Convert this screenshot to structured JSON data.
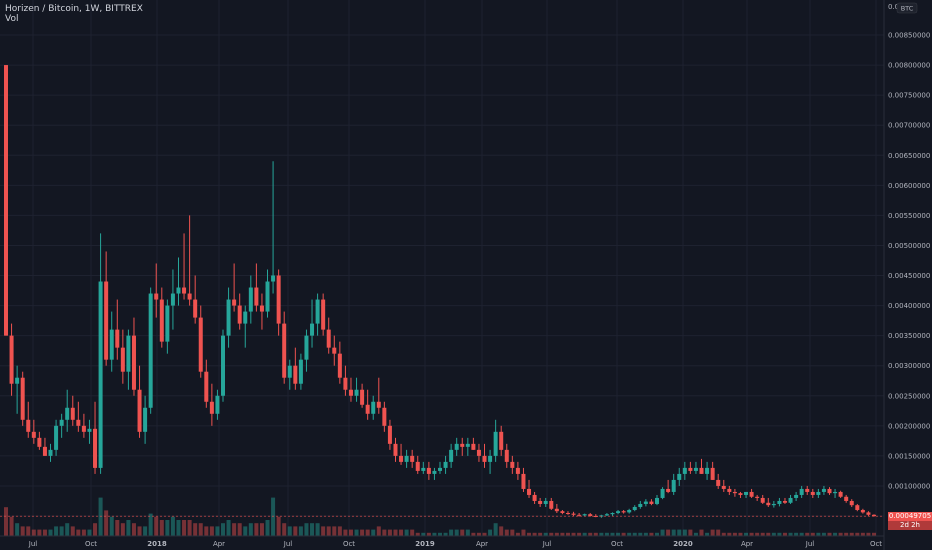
{
  "header": {
    "symbol_line": "Horizen / Bitcoin, 1W, BITTREX",
    "volume_label": "Vol"
  },
  "price_axis": {
    "currency": "BTC",
    "last_price": "0.00049705",
    "countdown": "2d 2h"
  },
  "colors": {
    "background": "#131722",
    "grid": "#1e2230",
    "up": "#26a69a",
    "down": "#ef5350",
    "axis_text": "#b2b5be"
  },
  "chart_data": {
    "type": "candlestick",
    "yaxis": {
      "min": 0.0005,
      "max": 0.0085,
      "step": 0.0005,
      "tick_labels": [
        "0.00050000",
        "0.00100000",
        "0.00150000",
        "0.00200000",
        "0.00250000",
        "0.00300000",
        "0.00350000",
        "0.00400000",
        "0.00450000",
        "0.00500000",
        "0.00550000",
        "0.00600000",
        "0.00650000",
        "0.00700000",
        "0.00750000",
        "0.00800000",
        "0.00850000"
      ],
      "top_label": "0.0"
    },
    "xaxis": {
      "tick_labels": [
        "Jul",
        "Oct",
        "2018",
        "Apr",
        "Jul",
        "Oct",
        "2019",
        "Apr",
        "Jul",
        "Oct",
        "2020",
        "Apr",
        "Jul",
        "Oct"
      ]
    },
    "grid": true,
    "candles": [
      [
        0.008,
        0.008,
        0.0035,
        0.0035,
        9
      ],
      [
        0.0035,
        0.0037,
        0.0025,
        0.0027,
        6
      ],
      [
        0.0027,
        0.003,
        0.0022,
        0.0028,
        4
      ],
      [
        0.0028,
        0.0029,
        0.002,
        0.0021,
        3
      ],
      [
        0.0021,
        0.0024,
        0.0018,
        0.0019,
        3
      ],
      [
        0.0019,
        0.0021,
        0.0017,
        0.0018,
        2
      ],
      [
        0.0018,
        0.0019,
        0.0016,
        0.00165,
        2
      ],
      [
        0.00165,
        0.0018,
        0.0015,
        0.0015,
        2
      ],
      [
        0.0015,
        0.0017,
        0.0014,
        0.0016,
        2
      ],
      [
        0.0016,
        0.0021,
        0.0015,
        0.002,
        3
      ],
      [
        0.002,
        0.0022,
        0.0018,
        0.0021,
        3
      ],
      [
        0.0021,
        0.0026,
        0.0019,
        0.0023,
        4
      ],
      [
        0.0023,
        0.0025,
        0.002,
        0.0021,
        3
      ],
      [
        0.0021,
        0.0024,
        0.0019,
        0.002,
        2
      ],
      [
        0.002,
        0.0022,
        0.0018,
        0.0019,
        2
      ],
      [
        0.0019,
        0.0021,
        0.0017,
        0.00195,
        2
      ],
      [
        0.00195,
        0.0024,
        0.0012,
        0.0013,
        4
      ],
      [
        0.0013,
        0.0052,
        0.0012,
        0.0044,
        12
      ],
      [
        0.0044,
        0.0049,
        0.003,
        0.0031,
        8
      ],
      [
        0.0031,
        0.0039,
        0.0029,
        0.0036,
        6
      ],
      [
        0.0036,
        0.0041,
        0.0031,
        0.0033,
        5
      ],
      [
        0.0033,
        0.0036,
        0.0027,
        0.0029,
        4
      ],
      [
        0.0029,
        0.0036,
        0.0026,
        0.0035,
        5
      ],
      [
        0.0035,
        0.0038,
        0.0025,
        0.0026,
        4
      ],
      [
        0.0026,
        0.003,
        0.0018,
        0.0019,
        3
      ],
      [
        0.0019,
        0.0025,
        0.0017,
        0.0023,
        3
      ],
      [
        0.0023,
        0.0043,
        0.0022,
        0.0042,
        7
      ],
      [
        0.0042,
        0.0047,
        0.0038,
        0.0041,
        6
      ],
      [
        0.0041,
        0.0043,
        0.0033,
        0.0034,
        5
      ],
      [
        0.0034,
        0.0041,
        0.0032,
        0.004,
        5
      ],
      [
        0.004,
        0.0046,
        0.0036,
        0.0042,
        6
      ],
      [
        0.0042,
        0.0048,
        0.004,
        0.0043,
        5
      ],
      [
        0.0043,
        0.0052,
        0.0041,
        0.0042,
        5
      ],
      [
        0.0042,
        0.0055,
        0.004,
        0.0041,
        5
      ],
      [
        0.0041,
        0.0045,
        0.0037,
        0.0038,
        4
      ],
      [
        0.0038,
        0.004,
        0.0028,
        0.0029,
        4
      ],
      [
        0.0029,
        0.0031,
        0.0023,
        0.0024,
        3
      ],
      [
        0.0024,
        0.0027,
        0.002,
        0.0022,
        3
      ],
      [
        0.0022,
        0.0026,
        0.0021,
        0.0025,
        3
      ],
      [
        0.0025,
        0.0036,
        0.0024,
        0.0035,
        4
      ],
      [
        0.0035,
        0.0043,
        0.0033,
        0.0041,
        5
      ],
      [
        0.0041,
        0.0047,
        0.0039,
        0.004,
        4
      ],
      [
        0.004,
        0.0042,
        0.0036,
        0.0037,
        4
      ],
      [
        0.0037,
        0.004,
        0.0033,
        0.0039,
        3
      ],
      [
        0.0039,
        0.0045,
        0.0037,
        0.0043,
        4
      ],
      [
        0.0043,
        0.0047,
        0.0039,
        0.004,
        4
      ],
      [
        0.004,
        0.0042,
        0.0036,
        0.0039,
        4
      ],
      [
        0.0039,
        0.0046,
        0.0038,
        0.0044,
        5
      ],
      [
        0.0044,
        0.0064,
        0.0042,
        0.0045,
        12
      ],
      [
        0.0045,
        0.0046,
        0.0035,
        0.0037,
        6
      ],
      [
        0.0037,
        0.0039,
        0.0027,
        0.0028,
        4
      ],
      [
        0.0028,
        0.0031,
        0.0026,
        0.003,
        3
      ],
      [
        0.003,
        0.0033,
        0.0026,
        0.0027,
        3
      ],
      [
        0.0027,
        0.0032,
        0.0026,
        0.0031,
        3
      ],
      [
        0.0031,
        0.0036,
        0.0029,
        0.0035,
        4
      ],
      [
        0.0035,
        0.0041,
        0.0033,
        0.0037,
        4
      ],
      [
        0.0037,
        0.0042,
        0.0035,
        0.0041,
        4
      ],
      [
        0.0041,
        0.0042,
        0.0035,
        0.0036,
        3
      ],
      [
        0.0036,
        0.0038,
        0.0032,
        0.0033,
        3
      ],
      [
        0.0033,
        0.0035,
        0.003,
        0.0032,
        3
      ],
      [
        0.0032,
        0.0034,
        0.0027,
        0.0028,
        3
      ],
      [
        0.0028,
        0.003,
        0.0025,
        0.0026,
        2
      ],
      [
        0.0026,
        0.0028,
        0.0024,
        0.0025,
        2
      ],
      [
        0.0025,
        0.0028,
        0.0024,
        0.0026,
        2
      ],
      [
        0.0026,
        0.0027,
        0.0023,
        0.00235,
        2
      ],
      [
        0.00235,
        0.0026,
        0.0021,
        0.0022,
        2
      ],
      [
        0.0022,
        0.0025,
        0.0021,
        0.0024,
        2
      ],
      [
        0.0024,
        0.0028,
        0.0022,
        0.0023,
        3
      ],
      [
        0.0023,
        0.0024,
        0.0019,
        0.002,
        2
      ],
      [
        0.002,
        0.0021,
        0.0016,
        0.0017,
        2
      ],
      [
        0.0017,
        0.0018,
        0.0014,
        0.0015,
        2
      ],
      [
        0.0015,
        0.0017,
        0.00135,
        0.0014,
        2
      ],
      [
        0.0014,
        0.0016,
        0.0013,
        0.0015,
        2
      ],
      [
        0.0015,
        0.0016,
        0.0013,
        0.0014,
        2
      ],
      [
        0.0014,
        0.0015,
        0.0012,
        0.00125,
        1
      ],
      [
        0.00125,
        0.0014,
        0.0012,
        0.0013,
        1
      ],
      [
        0.0013,
        0.0014,
        0.0011,
        0.0012,
        1
      ],
      [
        0.0012,
        0.0013,
        0.0011,
        0.00125,
        1
      ],
      [
        0.00125,
        0.0014,
        0.0012,
        0.0013,
        1
      ],
      [
        0.0013,
        0.0015,
        0.0012,
        0.0014,
        1
      ],
      [
        0.0014,
        0.0017,
        0.0013,
        0.0016,
        2
      ],
      [
        0.0016,
        0.0018,
        0.0015,
        0.0017,
        2
      ],
      [
        0.0017,
        0.0018,
        0.0015,
        0.00165,
        2
      ],
      [
        0.00165,
        0.0018,
        0.0015,
        0.0017,
        2
      ],
      [
        0.0017,
        0.0018,
        0.0016,
        0.0016,
        1
      ],
      [
        0.0016,
        0.0017,
        0.0014,
        0.0015,
        1
      ],
      [
        0.0015,
        0.0017,
        0.0013,
        0.0014,
        1
      ],
      [
        0.0014,
        0.0016,
        0.0012,
        0.0015,
        2
      ],
      [
        0.0015,
        0.0021,
        0.0014,
        0.0019,
        4
      ],
      [
        0.0019,
        0.002,
        0.0015,
        0.0016,
        3
      ],
      [
        0.0016,
        0.0017,
        0.0013,
        0.0014,
        2
      ],
      [
        0.0014,
        0.0015,
        0.0012,
        0.0013,
        2
      ],
      [
        0.0013,
        0.0014,
        0.0011,
        0.0012,
        1
      ],
      [
        0.0012,
        0.0013,
        0.0009,
        0.00095,
        2
      ],
      [
        0.00095,
        0.0011,
        0.0008,
        0.00085,
        1
      ],
      [
        0.00085,
        0.0009,
        0.0007,
        0.00075,
        1
      ],
      [
        0.00075,
        0.0008,
        0.00065,
        0.0007,
        1
      ],
      [
        0.0007,
        0.0008,
        0.00065,
        0.00075,
        1
      ],
      [
        0.00075,
        0.0008,
        0.0006,
        0.00062,
        1
      ],
      [
        0.00062,
        0.0007,
        0.00055,
        0.00058,
        1
      ],
      [
        0.00058,
        0.0006,
        0.00053,
        0.00055,
        1
      ],
      [
        0.00055,
        0.00058,
        0.00052,
        0.00054,
        1
      ],
      [
        0.00054,
        0.00057,
        0.0005,
        0.00052,
        1
      ],
      [
        0.00052,
        0.00055,
        0.00049,
        0.00051,
        1
      ],
      [
        0.00051,
        0.00054,
        0.00049,
        0.00053,
        1
      ],
      [
        0.00053,
        0.00055,
        0.00049,
        0.0005,
        1
      ],
      [
        0.0005,
        0.00053,
        0.00048,
        0.00049,
        1
      ],
      [
        0.00049,
        0.00052,
        0.00047,
        0.00051,
        1
      ],
      [
        0.00051,
        0.00055,
        0.0005,
        0.00053,
        1
      ],
      [
        0.00053,
        0.00056,
        0.0005,
        0.00055,
        1
      ],
      [
        0.00055,
        0.0006,
        0.00053,
        0.00058,
        1
      ],
      [
        0.00058,
        0.0006,
        0.00054,
        0.00056,
        1
      ],
      [
        0.00056,
        0.00062,
        0.00054,
        0.0006,
        1
      ],
      [
        0.0006,
        0.00068,
        0.00058,
        0.00065,
        1
      ],
      [
        0.00065,
        0.00075,
        0.00062,
        0.0007,
        1
      ],
      [
        0.0007,
        0.00078,
        0.00066,
        0.00074,
        1
      ],
      [
        0.00074,
        0.00078,
        0.00068,
        0.0007,
        1
      ],
      [
        0.0007,
        0.00085,
        0.00068,
        0.0008,
        1
      ],
      [
        0.0008,
        0.00098,
        0.00078,
        0.00095,
        2
      ],
      [
        0.00095,
        0.0011,
        0.00088,
        0.0009,
        2
      ],
      [
        0.0009,
        0.0012,
        0.00085,
        0.0011,
        2
      ],
      [
        0.0011,
        0.0013,
        0.001,
        0.0012,
        2
      ],
      [
        0.0012,
        0.0014,
        0.0011,
        0.0013,
        2
      ],
      [
        0.0013,
        0.0014,
        0.0012,
        0.00125,
        2
      ],
      [
        0.00125,
        0.0014,
        0.0012,
        0.0013,
        1
      ],
      [
        0.0013,
        0.00145,
        0.0012,
        0.0012,
        2
      ],
      [
        0.0012,
        0.0014,
        0.0011,
        0.0013,
        1
      ],
      [
        0.0013,
        0.0014,
        0.0011,
        0.0011,
        2
      ],
      [
        0.0011,
        0.0012,
        0.00095,
        0.001,
        2
      ],
      [
        0.001,
        0.0011,
        0.0009,
        0.00095,
        1
      ],
      [
        0.00095,
        0.001,
        0.00085,
        0.0009,
        1
      ],
      [
        0.0009,
        0.00095,
        0.00082,
        0.00088,
        1
      ],
      [
        0.00088,
        0.0009,
        0.0008,
        0.00085,
        1
      ],
      [
        0.00085,
        0.0009,
        0.0008,
        0.0009,
        1
      ],
      [
        0.0009,
        0.00095,
        0.0008,
        0.00082,
        1
      ],
      [
        0.00082,
        0.00085,
        0.00075,
        0.0008,
        1
      ],
      [
        0.0008,
        0.00085,
        0.0007,
        0.00072,
        1
      ],
      [
        0.00072,
        0.0008,
        0.00065,
        0.00068,
        1
      ],
      [
        0.00068,
        0.00075,
        0.00064,
        0.0007,
        1
      ],
      [
        0.0007,
        0.0008,
        0.00066,
        0.00075,
        1
      ],
      [
        0.00075,
        0.0008,
        0.0007,
        0.00072,
        1
      ],
      [
        0.00072,
        0.00085,
        0.0007,
        0.0008,
        1
      ],
      [
        0.0008,
        0.0009,
        0.00075,
        0.00085,
        1
      ],
      [
        0.00085,
        0.001,
        0.0008,
        0.00095,
        1
      ],
      [
        0.00095,
        0.001,
        0.00085,
        0.0009,
        1
      ],
      [
        0.0009,
        0.00095,
        0.0008,
        0.00085,
        1
      ],
      [
        0.00085,
        0.00095,
        0.0008,
        0.0009,
        1
      ],
      [
        0.0009,
        0.001,
        0.00085,
        0.00095,
        1
      ],
      [
        0.00095,
        0.00098,
        0.00085,
        0.00088,
        1
      ],
      [
        0.00088,
        0.00095,
        0.0008,
        0.0009,
        1
      ],
      [
        0.0009,
        0.00092,
        0.0008,
        0.00082,
        1
      ],
      [
        0.00082,
        0.00085,
        0.00072,
        0.00075,
        1
      ],
      [
        0.00075,
        0.00078,
        0.00065,
        0.00068,
        1
      ],
      [
        0.00068,
        0.0007,
        0.00058,
        0.0006,
        1
      ],
      [
        0.0006,
        0.00062,
        0.00054,
        0.00056,
        1
      ],
      [
        0.00056,
        0.00058,
        0.0005,
        0.00052,
        1
      ],
      [
        0.00052,
        0.00053,
        0.00049,
        0.000497,
        1
      ]
    ]
  }
}
